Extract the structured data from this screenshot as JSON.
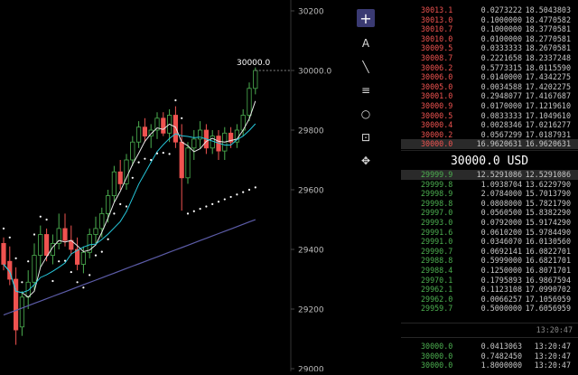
{
  "chart": {
    "y_ticks": [
      "30200",
      "30000.0",
      "29800",
      "29600",
      "29400",
      "29200",
      "29000"
    ],
    "current_price_label": "30000.0",
    "callout_label": "30000.0",
    "colors": {
      "up": "#4caf50",
      "down": "#ef5350",
      "ma_fast": "#e8e8e8",
      "ma_mid": "#26c6da",
      "ma_slow": "#5c5ca8",
      "psar": "#ffffff"
    }
  },
  "toolbar": {
    "tools": [
      {
        "name": "crosshair",
        "glyph": "+"
      },
      {
        "name": "text",
        "glyph": "A"
      },
      {
        "name": "trendline",
        "glyph": "╲"
      },
      {
        "name": "fib",
        "glyph": "≡"
      },
      {
        "name": "circle",
        "glyph": "○"
      },
      {
        "name": "measure",
        "glyph": "⊡"
      },
      {
        "name": "move",
        "glyph": "✥"
      }
    ]
  },
  "orderbook": {
    "asks": [
      {
        "price": "30013.1",
        "amount": "0.0273222",
        "total": "18.5043803"
      },
      {
        "price": "30013.0",
        "amount": "0.1000000",
        "total": "18.4770582"
      },
      {
        "price": "30010.7",
        "amount": "0.1000000",
        "total": "18.3770581"
      },
      {
        "price": "30010.0",
        "amount": "0.0100000",
        "total": "18.2770581"
      },
      {
        "price": "30009.5",
        "amount": "0.0333333",
        "total": "18.2670581"
      },
      {
        "price": "30008.7",
        "amount": "0.2221658",
        "total": "18.2337248"
      },
      {
        "price": "30006.2",
        "amount": "0.5773315",
        "total": "18.0115590"
      },
      {
        "price": "30006.0",
        "amount": "0.0140000",
        "total": "17.4342275"
      },
      {
        "price": "30005.0",
        "amount": "0.0034588",
        "total": "17.4202275"
      },
      {
        "price": "30001.0",
        "amount": "0.2948077",
        "total": "17.4167687"
      },
      {
        "price": "30000.9",
        "amount": "0.0170000",
        "total": "17.1219610"
      },
      {
        "price": "30000.5",
        "amount": "0.0833333",
        "total": "17.1049610"
      },
      {
        "price": "30000.4",
        "amount": "0.0028346",
        "total": "17.0216277"
      },
      {
        "price": "30000.2",
        "amount": "0.0567299",
        "total": "17.0187931"
      },
      {
        "price": "30000.0",
        "amount": "16.9620631",
        "total": "16.9620631"
      }
    ],
    "mid_price": "30000.0 USD",
    "bids": [
      {
        "price": "29999.9",
        "amount": "12.5291086",
        "total": "12.5291086"
      },
      {
        "price": "29999.8",
        "amount": "1.0938704",
        "total": "13.6229790"
      },
      {
        "price": "29998.9",
        "amount": "2.0784000",
        "total": "15.7013790"
      },
      {
        "price": "29998.8",
        "amount": "0.0808000",
        "total": "15.7821790"
      },
      {
        "price": "29997.0",
        "amount": "0.0560500",
        "total": "15.8382290"
      },
      {
        "price": "29993.0",
        "amount": "0.0792000",
        "total": "15.9174290"
      },
      {
        "price": "29991.6",
        "amount": "0.0610200",
        "total": "15.9784490"
      },
      {
        "price": "29991.0",
        "amount": "0.0346070",
        "total": "16.0130560"
      },
      {
        "price": "29990.7",
        "amount": "0.0692141",
        "total": "16.0822701"
      },
      {
        "price": "29988.8",
        "amount": "0.5999000",
        "total": "16.6821701"
      },
      {
        "price": "29988.4",
        "amount": "0.1250000",
        "total": "16.8071701"
      },
      {
        "price": "29970.1",
        "amount": "0.1795893",
        "total": "16.9867594"
      },
      {
        "price": "29962.1",
        "amount": "0.1123108",
        "total": "17.0990702"
      },
      {
        "price": "29962.0",
        "amount": "0.0066257",
        "total": "17.1056959"
      },
      {
        "price": "29959.7",
        "amount": "0.5000000",
        "total": "17.6056959"
      }
    ],
    "timestamp": "13:20:47"
  },
  "trades": {
    "timestamp_header": "13:20:47",
    "rows": [
      {
        "price": "30000.0",
        "amount": "0.0413063",
        "time": "13:20:47"
      },
      {
        "price": "30000.0",
        "amount": "0.7482450",
        "time": "13:20:47"
      },
      {
        "price": "30000.0",
        "amount": "1.8000000",
        "time": "13:20:47"
      }
    ]
  }
}
